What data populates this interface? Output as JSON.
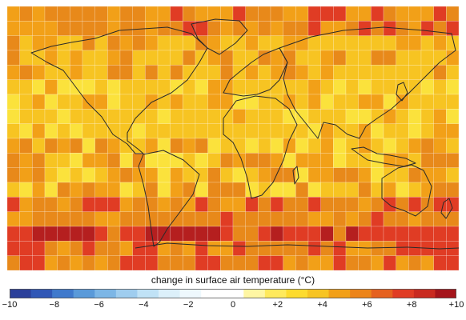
{
  "map": {
    "grid": {
      "cols": 36,
      "rows": 18
    },
    "colors": {
      "hot1": "#e8891a",
      "hot2": "#f2a018",
      "warm": "#f7c422",
      "mild": "#fbe23c",
      "red": "#e03c24",
      "darkred": "#b51f1f",
      "coast": "#2a2a2a",
      "gridline": "#ffffff"
    }
  },
  "legend": {
    "title": "change in surface air temperature (°C)",
    "range": [
      -10,
      10
    ],
    "step": 1,
    "ticks": [
      "−10",
      "−8",
      "−6",
      "−4",
      "−2",
      "0",
      "+2",
      "+4",
      "+6",
      "+8",
      "+10"
    ],
    "tick_values": [
      -10,
      -8,
      -6,
      -4,
      -2,
      0,
      2,
      4,
      6,
      8,
      10
    ],
    "stops": [
      "#2b3f9a",
      "#3057b6",
      "#3f79cc",
      "#5a9ad9",
      "#7cb6e6",
      "#9fcdef",
      "#c0e2f6",
      "#dcf0fa",
      "#eef8fd",
      "#ffffff",
      "#ffffff",
      "#fff6a3",
      "#ffe95c",
      "#fddb2e",
      "#f7c422",
      "#f2a018",
      "#ec8419",
      "#e5611f",
      "#e03c24",
      "#c92a20",
      "#a5141b"
    ]
  }
}
